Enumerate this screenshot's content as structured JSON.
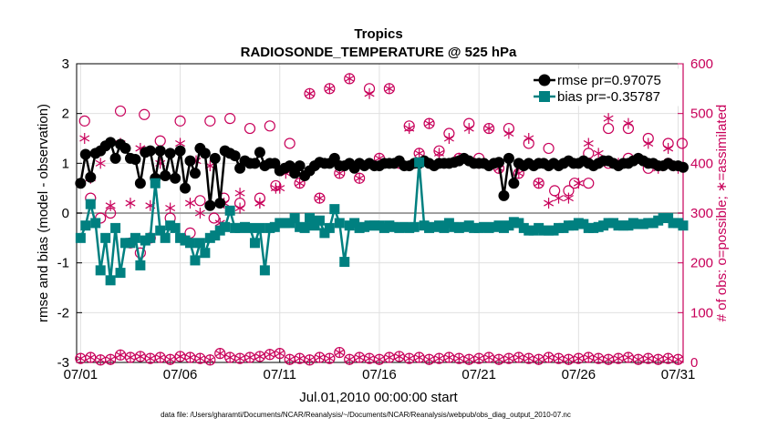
{
  "chart_data": {
    "type": "line",
    "title": "Tropics",
    "subtitle": "RADIOSONDE_TEMPERATURE @ 525 hPa",
    "xlabel": "Jul.01,2010 00:00:00 start",
    "ylabel": "rmse and bias (model - observation)",
    "ylabel_right": "# of obs: o=possible; ∗=assimilated",
    "footnote": "data file: /Users/gharamti/Documents/NCAR/Reanalysis/~/Documents/NCAR/Reanalysis/webpub/obs_diag_output_2010-07.nc",
    "xlim": [
      0.8,
      31.25
    ],
    "ylim": [
      -3,
      3
    ],
    "ylim_right": [
      0,
      600
    ],
    "x_ticks": [
      1,
      6,
      11,
      16,
      21,
      26,
      31
    ],
    "x_tick_labels": [
      "07/01",
      "07/06",
      "07/11",
      "07/16",
      "07/21",
      "07/26",
      "07/31"
    ],
    "y_ticks": [
      -3,
      -2,
      -1,
      0,
      1,
      2,
      3
    ],
    "y_ticks_right": [
      0,
      100,
      200,
      300,
      400,
      500,
      600
    ],
    "legend": {
      "location": "top-right",
      "entries": [
        "rmse pr=0.97075",
        "bias pr=-0.35787"
      ]
    },
    "colors": {
      "rmse": "#000000",
      "bias": "#008080",
      "obs": "#c8005a",
      "zero_line": "#a0a0a0",
      "grid": "#e0e0e0"
    },
    "series": [
      {
        "name": "rmse",
        "axis": "left",
        "x": [
          1.0,
          1.25,
          1.5,
          1.75,
          2.0,
          2.25,
          2.5,
          2.75,
          3.0,
          3.25,
          3.5,
          3.75,
          4.0,
          4.25,
          4.5,
          4.75,
          5.0,
          5.25,
          5.5,
          5.75,
          6.0,
          6.25,
          6.5,
          6.75,
          7.0,
          7.25,
          7.5,
          7.75,
          8.0,
          8.25,
          8.5,
          8.75,
          9.0,
          9.25,
          9.5,
          9.75,
          10.0,
          10.25,
          10.5,
          10.75,
          11.0,
          11.25,
          11.5,
          11.75,
          12.0,
          12.25,
          12.5,
          12.75,
          13.0,
          13.25,
          13.5,
          13.75,
          14.0,
          14.25,
          14.5,
          14.75,
          15.0,
          15.25,
          15.5,
          15.75,
          16.0,
          16.25,
          16.5,
          16.75,
          17.0,
          17.25,
          17.5,
          17.75,
          18.0,
          18.25,
          18.5,
          18.75,
          19.0,
          19.25,
          19.5,
          19.75,
          20.0,
          20.25,
          20.5,
          20.75,
          21.0,
          21.25,
          21.5,
          21.75,
          22.0,
          22.25,
          22.5,
          22.75,
          23.0,
          23.25,
          23.5,
          23.75,
          24.0,
          24.25,
          24.5,
          24.75,
          25.0,
          25.25,
          25.5,
          25.75,
          26.0,
          26.25,
          26.5,
          26.75,
          27.0,
          27.25,
          27.5,
          27.75,
          28.0,
          28.25,
          28.5,
          28.75,
          29.0,
          29.25,
          29.5,
          29.75,
          30.0,
          30.25,
          30.5,
          30.75,
          31.0,
          31.25
        ],
        "values": [
          0.6,
          1.18,
          0.72,
          1.2,
          1.25,
          1.35,
          1.42,
          1.1,
          1.38,
          1.3,
          1.1,
          1.08,
          0.6,
          1.22,
          1.25,
          0.7,
          1.25,
          0.75,
          1.2,
          0.7,
          1.25,
          0.5,
          1.05,
          0.8,
          1.3,
          1.2,
          0.15,
          1.1,
          0.2,
          1.25,
          1.2,
          1.15,
          0.9,
          1.05,
          1.0,
          1.0,
          1.22,
          0.95,
          1.0,
          1.0,
          0.85,
          0.9,
          0.95,
          0.8,
          0.95,
          0.75,
          0.85,
          0.95,
          1.02,
          1.0,
          1.0,
          1.1,
          0.95,
          0.95,
          1.0,
          0.9,
          1.0,
          0.95,
          1.0,
          0.95,
          0.95,
          1.0,
          1.0,
          1.0,
          1.05,
          0.95,
          0.95,
          1.0,
          1.0,
          1.05,
          1.0,
          0.95,
          1.0,
          1.0,
          1.0,
          1.02,
          1.05,
          1.1,
          1.05,
          1.0,
          1.0,
          1.0,
          0.95,
          1.0,
          1.02,
          0.35,
          1.1,
          0.6,
          1.0,
          0.95,
          1.0,
          0.95,
          1.0,
          1.0,
          0.95,
          1.0,
          0.95,
          1.0,
          1.05,
          1.0,
          1.0,
          1.05,
          1.0,
          0.95,
          1.0,
          1.05,
          1.05,
          1.0,
          0.95,
          1.0,
          1.0,
          1.05,
          1.1,
          1.05,
          1.0,
          1.0,
          0.95,
          0.95,
          1.0,
          0.95,
          0.95,
          0.92
        ]
      },
      {
        "name": "bias",
        "axis": "left",
        "x": [
          1.0,
          1.25,
          1.5,
          1.75,
          2.0,
          2.25,
          2.5,
          2.75,
          3.0,
          3.25,
          3.5,
          3.75,
          4.0,
          4.25,
          4.5,
          4.75,
          5.0,
          5.25,
          5.5,
          5.75,
          6.0,
          6.25,
          6.5,
          6.75,
          7.0,
          7.25,
          7.5,
          7.75,
          8.0,
          8.25,
          8.5,
          8.75,
          9.0,
          9.25,
          9.5,
          9.75,
          10.0,
          10.25,
          10.5,
          10.75,
          11.0,
          11.25,
          11.5,
          11.75,
          12.0,
          12.25,
          12.5,
          12.75,
          13.0,
          13.25,
          13.5,
          13.75,
          14.0,
          14.25,
          14.5,
          14.75,
          15.0,
          15.25,
          15.5,
          15.75,
          16.0,
          16.25,
          16.5,
          16.75,
          17.0,
          17.25,
          17.5,
          17.75,
          18.0,
          18.25,
          18.5,
          18.75,
          19.0,
          19.25,
          19.5,
          19.75,
          20.0,
          20.25,
          20.5,
          20.75,
          21.0,
          21.25,
          21.5,
          21.75,
          22.0,
          22.25,
          22.5,
          22.75,
          23.0,
          23.25,
          23.5,
          23.75,
          24.0,
          24.25,
          24.5,
          24.75,
          25.0,
          25.25,
          25.5,
          25.75,
          26.0,
          26.25,
          26.5,
          26.75,
          27.0,
          27.25,
          27.5,
          27.75,
          28.0,
          28.25,
          28.5,
          28.75,
          29.0,
          29.25,
          29.5,
          29.75,
          30.0,
          30.25,
          30.5,
          30.75,
          31.0,
          31.25
        ],
        "values": [
          -0.5,
          -0.25,
          0.18,
          -0.2,
          -1.15,
          -0.5,
          -1.35,
          -0.3,
          -1.2,
          -0.6,
          -0.6,
          -0.5,
          -1.05,
          -0.55,
          -0.5,
          0.6,
          -0.35,
          -0.5,
          -0.25,
          -0.3,
          -0.5,
          -0.55,
          -0.6,
          -0.95,
          -0.6,
          -0.8,
          -0.5,
          -0.45,
          -0.35,
          -0.28,
          0.05,
          -0.3,
          -0.3,
          -0.28,
          -0.3,
          -0.6,
          -0.3,
          -1.15,
          -0.3,
          -0.28,
          -0.2,
          -0.2,
          -0.2,
          -0.1,
          -0.28,
          -0.3,
          -0.1,
          -0.25,
          -0.15,
          -0.4,
          -0.3,
          0.08,
          -0.2,
          -0.98,
          -0.25,
          -0.2,
          -0.3,
          -0.28,
          -0.25,
          -0.25,
          -0.25,
          -0.3,
          -0.25,
          -0.28,
          -0.3,
          -0.28,
          -0.3,
          -0.28,
          1.02,
          -0.25,
          -0.3,
          -0.28,
          -0.25,
          -0.3,
          -0.2,
          -0.28,
          -0.3,
          -0.28,
          -0.25,
          -0.3,
          -0.3,
          -0.28,
          -0.3,
          -0.28,
          -0.25,
          -0.3,
          -0.25,
          -0.18,
          -0.2,
          -0.3,
          -0.35,
          -0.35,
          -0.3,
          -0.35,
          -0.35,
          -0.35,
          -0.3,
          -0.3,
          -0.25,
          -0.25,
          -0.2,
          -0.22,
          -0.3,
          -0.3,
          -0.28,
          -0.25,
          -0.2,
          -0.2,
          -0.25,
          -0.25,
          -0.25,
          -0.2,
          -0.22,
          -0.22,
          -0.2,
          -0.2,
          -0.15,
          -0.1,
          -0.1,
          -0.2,
          -0.2,
          -0.25
        ]
      },
      {
        "name": "possible",
        "axis": "right",
        "marker": "circle",
        "groups": [
          {
            "x": [
              1.2,
              3.0,
              4.2,
              5.0,
              6.0,
              7.5,
              8.5,
              9.5,
              10.5,
              11.5,
              12.5,
              13.5,
              14.5,
              15.5,
              16.5,
              17.5,
              18.5,
              19.5,
              20.5,
              21.5,
              22.5,
              23.5,
              24.5,
              25.5,
              26.5,
              27.5,
              28.5,
              29.5,
              30.5,
              31.2
            ],
            "values": [
              485,
              505,
              498,
              445,
              485,
              485,
              490,
              470,
              475,
              440,
              540,
              550,
              570,
              550,
              550,
              475,
              480,
              460,
              480,
              470,
              470,
              440,
              430,
              345,
              360,
              470,
              470,
              450,
              440,
              440
            ]
          },
          {
            "x": [
              1.5,
              2.0,
              2.5,
              3.5,
              4.0,
              4.5,
              5.5,
              6.5,
              7.0,
              7.7,
              8.2,
              9.0,
              10.0,
              10.8,
              11.3,
              12.0,
              13.0,
              14.0,
              15.0,
              16.0,
              17.0,
              18.0,
              19.0,
              20.0,
              21.0,
              22.0,
              23.0,
              24.0,
              24.8,
              25.8,
              26.5,
              27.5,
              28.5,
              29.5,
              30.5
            ],
            "values": [
              330,
              290,
              300,
              240,
              220,
              250,
              290,
              260,
              325,
              290,
              330,
              320,
              330,
              355,
              390,
              360,
              330,
              380,
              370,
              410,
              400,
              420,
              425,
              410,
              410,
              390,
              380,
              360,
              345,
              360,
              420,
              400,
              410,
              390,
              400
            ]
          }
        ]
      },
      {
        "name": "assimilated",
        "axis": "right",
        "marker": "asterisk",
        "groups": [
          {
            "x": [
              1.2,
              2.0,
              3.0,
              4.0,
              5.0,
              6.0,
              6.8,
              7.5,
              8.2,
              9.0,
              10.0,
              10.8,
              11.3,
              12.5,
              13.5,
              14.5,
              15.5,
              16.5,
              17.5,
              18.5,
              19.5,
              20.5,
              21.5,
              22.5,
              23.5,
              24.5,
              25.5,
              26.5,
              27.5,
              28.5,
              29.5,
              30.5
            ],
            "values": [
              450,
              400,
              440,
              430,
              400,
              440,
              405,
              395,
              320,
              340,
              320,
              350,
              380,
              540,
              550,
              570,
              540,
              550,
              470,
              480,
              450,
              470,
              470,
              460,
              450,
              320,
              330,
              440,
              490,
              480,
              440,
              430
            ]
          },
          {
            "x": [
              1.5,
              2.5,
              3.5,
              4.5,
              5.5,
              6.5,
              7.0,
              8.0,
              9.0,
              10.0,
              11.0,
              12.0,
              13.0,
              14.0,
              15.0,
              16.0,
              17.0,
              18.0,
              19.0,
              20.0,
              21.0,
              22.0,
              23.0,
              24.0,
              25.0,
              26.0,
              27.0,
              28.0,
              29.0,
              30.0,
              31.0
            ],
            "values": [
              370,
              315,
              320,
              315,
              310,
              320,
              300,
              280,
              310,
              320,
              350,
              360,
              330,
              380,
              370,
              410,
              400,
              420,
              420,
              410,
              400,
              390,
              380,
              360,
              330,
              360,
              420,
              400,
              410,
              390,
              390
            ]
          },
          {
            "x": [
              1.0,
              1.5,
              2.0,
              2.5,
              3.0,
              3.5,
              4.0,
              4.5,
              5.0,
              5.5,
              6.0,
              6.5,
              7.0,
              7.5,
              8.0,
              8.5,
              9.0,
              9.5,
              10.0,
              10.5,
              11.0,
              11.5,
              12.0,
              12.5,
              13.0,
              13.5,
              14.0,
              14.5,
              15.0,
              15.5,
              16.0,
              16.5,
              17.0,
              17.5,
              18.0,
              18.5,
              19.0,
              19.5,
              20.0,
              20.5,
              21.0,
              21.5,
              22.0,
              22.5,
              23.0,
              23.5,
              24.0,
              24.5,
              25.0,
              25.5,
              26.0,
              26.5,
              27.0,
              27.5,
              28.0,
              28.5,
              29.0,
              29.5,
              30.0,
              30.5,
              31.0
            ],
            "values": [
              8,
              10,
              5,
              6,
              15,
              10,
              12,
              8,
              10,
              6,
              12,
              10,
              8,
              5,
              18,
              10,
              8,
              10,
              12,
              16,
              18,
              6,
              8,
              5,
              10,
              8,
              20,
              6,
              10,
              8,
              6,
              10,
              12,
              8,
              10,
              6,
              8,
              10,
              8,
              6,
              8,
              10,
              6,
              8,
              10,
              8,
              6,
              10,
              8,
              6,
              8,
              10,
              8,
              6,
              8,
              10,
              6,
              8,
              6,
              8,
              6
            ]
          }
        ]
      },
      {
        "name": "possible-low",
        "axis": "right",
        "marker": "circle",
        "groups": [
          {
            "x": [
              1.0,
              1.5,
              2.0,
              2.5,
              3.0,
              3.5,
              4.0,
              4.5,
              5.0,
              5.5,
              6.0,
              6.5,
              7.0,
              7.5,
              8.0,
              8.5,
              9.0,
              9.5,
              10.0,
              10.5,
              11.0,
              11.5,
              12.0,
              12.5,
              13.0,
              13.5,
              14.0,
              14.5,
              15.0,
              15.5,
              16.0,
              16.5,
              17.0,
              17.5,
              18.0,
              18.5,
              19.0,
              19.5,
              20.0,
              20.5,
              21.0,
              21.5,
              22.0,
              22.5,
              23.0,
              23.5,
              24.0,
              24.5,
              25.0,
              25.5,
              26.0,
              26.5,
              27.0,
              27.5,
              28.0,
              28.5,
              29.0,
              29.5,
              30.0,
              30.5,
              31.0
            ],
            "values": [
              8,
              10,
              5,
              6,
              15,
              10,
              12,
              8,
              10,
              6,
              12,
              10,
              8,
              5,
              18,
              10,
              8,
              10,
              12,
              16,
              18,
              6,
              8,
              5,
              10,
              8,
              20,
              6,
              10,
              8,
              6,
              10,
              12,
              8,
              10,
              6,
              8,
              10,
              8,
              6,
              8,
              10,
              6,
              8,
              10,
              8,
              6,
              10,
              8,
              6,
              8,
              10,
              8,
              6,
              8,
              10,
              6,
              8,
              6,
              8,
              6
            ]
          }
        ]
      }
    ]
  }
}
